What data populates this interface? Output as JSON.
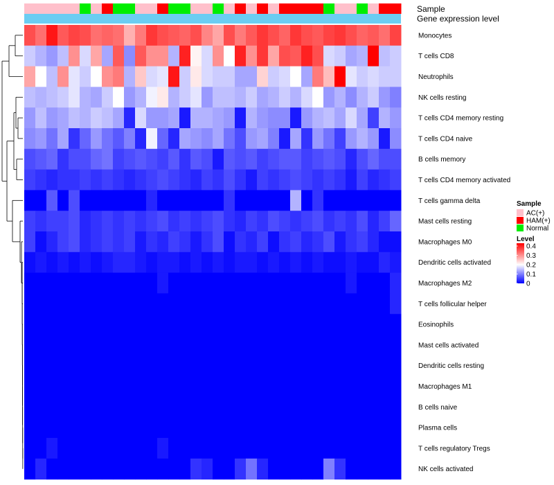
{
  "chart_data": {
    "type": "heatmap",
    "annotation_labels": [
      "Sample",
      "Gene expression level"
    ],
    "sample_groups": [
      "A",
      "A",
      "A",
      "A",
      "A",
      "C",
      "A",
      "B",
      "C",
      "C",
      "A",
      "A",
      "B",
      "C",
      "C",
      "A",
      "A",
      "C",
      "A",
      "B",
      "A",
      "B",
      "A",
      "B",
      "B",
      "B",
      "B",
      "C",
      "A",
      "A",
      "C",
      "A",
      "B",
      "B"
    ],
    "expression_band": "Gene expression level",
    "rows": [
      "Monocytes",
      "T cells CD8",
      "Neutrophils",
      "NK cells resting",
      "T cells CD4 memory resting",
      "T cells CD4 naive",
      "B cells memory",
      "T cells CD4 memory activated",
      "T cells gamma delta",
      "Mast cells resting",
      "Macrophages M0",
      "Dendritic cells activated",
      "Macrophages M2",
      "T cells follicular helper",
      "Eosinophils",
      "Mast cells activated",
      "Dendritic cells resting",
      "Macrophages M1",
      "B cells naive",
      "Plasma cells",
      "T cells regulatory  Tregs",
      "NK cells activated"
    ],
    "n_columns": 34,
    "values": [
      [
        0.36,
        0.33,
        0.41,
        0.35,
        0.37,
        0.36,
        0.33,
        0.34,
        0.33,
        0.27,
        0.32,
        0.38,
        0.36,
        0.35,
        0.34,
        0.36,
        0.31,
        0.28,
        0.36,
        0.32,
        0.35,
        0.38,
        0.36,
        0.34,
        0.38,
        0.36,
        0.35,
        0.37,
        0.38,
        0.36,
        0.34,
        0.35,
        0.33,
        0.37
      ],
      [
        0.16,
        0.14,
        0.12,
        0.15,
        0.3,
        0.17,
        0.28,
        0.13,
        0.35,
        0.11,
        0.35,
        0.3,
        0.3,
        0.14,
        0.4,
        0.21,
        0.17,
        0.3,
        0.2,
        0.4,
        0.3,
        0.38,
        0.28,
        0.36,
        0.35,
        0.4,
        0.36,
        0.17,
        0.16,
        0.13,
        0.14,
        0.43,
        0.15,
        0.16
      ],
      [
        0.28,
        0.2,
        0.15,
        0.3,
        0.18,
        0.16,
        0.2,
        0.3,
        0.32,
        0.14,
        0.25,
        0.17,
        0.18,
        0.41,
        0.16,
        0.22,
        0.17,
        0.16,
        0.16,
        0.13,
        0.13,
        0.24,
        0.16,
        0.17,
        0.2,
        0.13,
        0.32,
        0.26,
        0.43,
        0.18,
        0.16,
        0.17,
        0.16,
        0.16
      ],
      [
        0.15,
        0.14,
        0.15,
        0.16,
        0.18,
        0.14,
        0.13,
        0.16,
        0.2,
        0.12,
        0.14,
        0.19,
        0.22,
        0.14,
        0.16,
        0.18,
        0.12,
        0.15,
        0.15,
        0.14,
        0.16,
        0.13,
        0.14,
        0.16,
        0.14,
        0.17,
        0.2,
        0.12,
        0.14,
        0.11,
        0.14,
        0.16,
        0.12,
        0.1
      ],
      [
        0.12,
        0.15,
        0.12,
        0.13,
        0.15,
        0.14,
        0.16,
        0.15,
        0.13,
        0.03,
        0.17,
        0.12,
        0.12,
        0.13,
        0.02,
        0.14,
        0.14,
        0.13,
        0.12,
        0.02,
        0.14,
        0.12,
        0.11,
        0.11,
        0.02,
        0.12,
        0.14,
        0.15,
        0.13,
        0.17,
        0.13,
        0.05,
        0.14,
        0.12
      ],
      [
        0.11,
        0.12,
        0.09,
        0.13,
        0.04,
        0.08,
        0.12,
        0.09,
        0.07,
        0.1,
        0.03,
        0.19,
        0.08,
        0.03,
        0.13,
        0.12,
        0.11,
        0.13,
        0.09,
        0.06,
        0.12,
        0.13,
        0.1,
        0.02,
        0.13,
        0.04,
        0.12,
        0.09,
        0.05,
        0.12,
        0.14,
        0.12,
        0.02,
        0.11
      ],
      [
        0.06,
        0.07,
        0.08,
        0.04,
        0.06,
        0.06,
        0.08,
        0.09,
        0.05,
        0.06,
        0.07,
        0.06,
        0.05,
        0.07,
        0.04,
        0.07,
        0.06,
        0.02,
        0.07,
        0.06,
        0.07,
        0.05,
        0.06,
        0.07,
        0.07,
        0.05,
        0.06,
        0.07,
        0.06,
        0.03,
        0.06,
        0.08,
        0.06,
        0.06
      ],
      [
        0.05,
        0.04,
        0.03,
        0.04,
        0.04,
        0.05,
        0.04,
        0.05,
        0.04,
        0.03,
        0.04,
        0.05,
        0.06,
        0.05,
        0.04,
        0.03,
        0.05,
        0.04,
        0.06,
        0.04,
        0.02,
        0.05,
        0.04,
        0.05,
        0.06,
        0.05,
        0.04,
        0.05,
        0.04,
        0.02,
        0.05,
        0.03,
        0.04,
        0.05
      ],
      [
        0.0,
        0.0,
        0.07,
        0.0,
        0.06,
        0.0,
        0.0,
        0.0,
        0.0,
        0.0,
        0.0,
        0.03,
        0.0,
        0.0,
        0.0,
        0.0,
        0.0,
        0.0,
        0.04,
        0.0,
        0.0,
        0.0,
        0.0,
        0.0,
        0.14,
        0.0,
        0.04,
        0.0,
        0.0,
        0.0,
        0.0,
        0.0,
        0.0,
        0.0
      ],
      [
        0.05,
        0.04,
        0.05,
        0.05,
        0.06,
        0.03,
        0.04,
        0.05,
        0.04,
        0.05,
        0.04,
        0.05,
        0.06,
        0.04,
        0.05,
        0.04,
        0.05,
        0.06,
        0.04,
        0.03,
        0.05,
        0.04,
        0.06,
        0.05,
        0.04,
        0.05,
        0.06,
        0.04,
        0.05,
        0.04,
        0.06,
        0.03,
        0.05,
        0.08
      ],
      [
        0.05,
        0.01,
        0.03,
        0.05,
        0.06,
        0.03,
        0.04,
        0.05,
        0.04,
        0.05,
        0.02,
        0.04,
        0.03,
        0.05,
        0.04,
        0.02,
        0.04,
        0.06,
        0.01,
        0.04,
        0.03,
        0.05,
        0.01,
        0.04,
        0.05,
        0.03,
        0.04,
        0.06,
        0.02,
        0.04,
        0.05,
        0.03,
        0.01,
        0.01
      ],
      [
        0.01,
        0.02,
        0.01,
        0.02,
        0.01,
        0.02,
        0.01,
        0.02,
        0.03,
        0.03,
        0.02,
        0.01,
        0.02,
        0.02,
        0.01,
        0.02,
        0.01,
        0.02,
        0.01,
        0.02,
        0.02,
        0.01,
        0.02,
        0.01,
        0.02,
        0.01,
        0.02,
        0.01,
        0.01,
        0.02,
        0.01,
        0.01,
        0.03,
        0.02
      ],
      [
        0.0,
        0.0,
        0.0,
        0.0,
        0.0,
        0.0,
        0.0,
        0.0,
        0.0,
        0.0,
        0.0,
        0.0,
        0.02,
        0.0,
        0.0,
        0.0,
        0.0,
        0.0,
        0.0,
        0.0,
        0.0,
        0.0,
        0.0,
        0.0,
        0.0,
        0.0,
        0.0,
        0.0,
        0.0,
        0.02,
        0.0,
        0.0,
        0.0,
        0.03
      ],
      [
        0.0,
        0.0,
        0.0,
        0.0,
        0.0,
        0.0,
        0.0,
        0.0,
        0.0,
        0.0,
        0.0,
        0.0,
        0.0,
        0.0,
        0.0,
        0.0,
        0.0,
        0.0,
        0.0,
        0.0,
        0.0,
        0.0,
        0.0,
        0.0,
        0.0,
        0.0,
        0.0,
        0.0,
        0.0,
        0.0,
        0.0,
        0.0,
        0.0,
        0.03
      ],
      [
        0.0,
        0.0,
        0.0,
        0.0,
        0.0,
        0.0,
        0.0,
        0.0,
        0.0,
        0.0,
        0.0,
        0.0,
        0.0,
        0.0,
        0.0,
        0.0,
        0.0,
        0.0,
        0.0,
        0.0,
        0.0,
        0.0,
        0.0,
        0.0,
        0.0,
        0.0,
        0.0,
        0.0,
        0.0,
        0.0,
        0.0,
        0.0,
        0.0,
        0.0
      ],
      [
        0.0,
        0.0,
        0.0,
        0.0,
        0.0,
        0.0,
        0.0,
        0.0,
        0.0,
        0.0,
        0.0,
        0.0,
        0.0,
        0.0,
        0.0,
        0.0,
        0.0,
        0.0,
        0.0,
        0.0,
        0.0,
        0.0,
        0.0,
        0.0,
        0.0,
        0.0,
        0.0,
        0.0,
        0.0,
        0.0,
        0.0,
        0.0,
        0.0,
        0.0
      ],
      [
        0.0,
        0.0,
        0.0,
        0.0,
        0.0,
        0.0,
        0.0,
        0.0,
        0.0,
        0.0,
        0.0,
        0.0,
        0.0,
        0.0,
        0.0,
        0.0,
        0.0,
        0.0,
        0.0,
        0.0,
        0.0,
        0.0,
        0.0,
        0.0,
        0.0,
        0.0,
        0.0,
        0.0,
        0.0,
        0.0,
        0.0,
        0.0,
        0.0,
        0.0
      ],
      [
        0.0,
        0.0,
        0.0,
        0.0,
        0.0,
        0.0,
        0.0,
        0.0,
        0.0,
        0.0,
        0.0,
        0.0,
        0.0,
        0.0,
        0.0,
        0.0,
        0.0,
        0.0,
        0.0,
        0.0,
        0.0,
        0.0,
        0.0,
        0.0,
        0.0,
        0.0,
        0.0,
        0.0,
        0.0,
        0.0,
        0.0,
        0.0,
        0.0,
        0.0
      ],
      [
        0.0,
        0.0,
        0.0,
        0.0,
        0.0,
        0.0,
        0.0,
        0.0,
        0.0,
        0.0,
        0.0,
        0.0,
        0.0,
        0.0,
        0.0,
        0.0,
        0.0,
        0.0,
        0.0,
        0.0,
        0.0,
        0.0,
        0.0,
        0.0,
        0.0,
        0.0,
        0.0,
        0.0,
        0.0,
        0.0,
        0.0,
        0.0,
        0.0,
        0.0
      ],
      [
        0.0,
        0.0,
        0.0,
        0.0,
        0.0,
        0.0,
        0.0,
        0.0,
        0.0,
        0.0,
        0.0,
        0.0,
        0.0,
        0.0,
        0.0,
        0.0,
        0.0,
        0.0,
        0.0,
        0.0,
        0.0,
        0.0,
        0.0,
        0.0,
        0.0,
        0.0,
        0.0,
        0.0,
        0.0,
        0.0,
        0.0,
        0.0,
        0.0,
        0.0
      ],
      [
        0.0,
        0.0,
        0.02,
        0.0,
        0.0,
        0.0,
        0.0,
        0.0,
        0.0,
        0.0,
        0.0,
        0.0,
        0.02,
        0.0,
        0.0,
        0.0,
        0.0,
        0.0,
        0.0,
        0.0,
        0.0,
        0.0,
        0.0,
        0.0,
        0.0,
        0.0,
        0.0,
        0.0,
        0.0,
        0.0,
        0.0,
        0.0,
        0.0,
        0.0
      ],
      [
        0.0,
        0.03,
        0.0,
        0.0,
        0.0,
        0.0,
        0.0,
        0.0,
        0.0,
        0.0,
        0.0,
        0.0,
        0.0,
        0.0,
        0.0,
        0.04,
        0.03,
        0.0,
        0.0,
        0.04,
        0.09,
        0.03,
        0.0,
        0.0,
        0.0,
        0.0,
        0.0,
        0.1,
        0.04,
        0.0,
        0.0,
        0.0,
        0.0,
        0.0
      ]
    ],
    "legend": {
      "sample_title": "Sample",
      "sample_entries": [
        {
          "key": "A",
          "label": "AC(+)",
          "color": "#ffc0cb"
        },
        {
          "key": "B",
          "label": "HAM(+)",
          "color": "#ff0000"
        },
        {
          "key": "C",
          "label": "Normal",
          "color": "#00ee00"
        }
      ],
      "level_title": "Level",
      "level_ticks": [
        "0.4",
        "0.3",
        "0.2",
        "0.1",
        "0"
      ],
      "level_range": [
        0,
        0.43
      ]
    },
    "colors": {
      "low": "#0000ff",
      "mid": "#ffffff",
      "high": "#ff0000",
      "mid_value": 0.2,
      "expression_band": "#6ccdf2",
      "dendrogram": "#000000"
    }
  }
}
